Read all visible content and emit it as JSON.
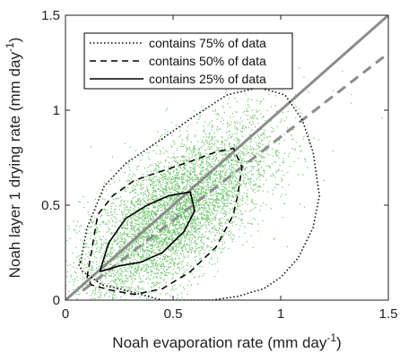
{
  "chart_data": {
    "type": "scatter",
    "xlabel": "Noah evaporation rate (mm day",
    "xlabel_sup": "-1",
    "xlabel_end": ")",
    "ylabel": "Noah layer 1 drying rate (mm day",
    "ylabel_sup": "-1",
    "ylabel_end": ")",
    "xlim": [
      0,
      1.5
    ],
    "ylim": [
      0,
      1.5
    ],
    "xticks": [
      0,
      0.5,
      1,
      1.5
    ],
    "yticks": [
      0,
      0.5,
      1,
      1.5
    ],
    "xtick_labels": [
      "0",
      "0.5",
      "1",
      "1.5"
    ],
    "ytick_labels": [
      "0",
      "0.5",
      "1",
      "1.5"
    ],
    "grid": false,
    "legend_position": "top-left",
    "colors": {
      "points": "#6cc46c",
      "contours": "#000000",
      "reference_lines": "#8c8c8c"
    },
    "scatter_cloud": {
      "center": [
        0.5,
        0.45
      ],
      "density": "dense"
    },
    "series": [
      {
        "name": "contains 75% of data",
        "style": "dotted",
        "x": [
          0.07,
          0.1,
          0.18,
          0.28,
          0.45,
          0.6,
          0.75,
          0.9,
          1.02,
          1.1,
          1.15,
          1.18,
          1.15,
          1.08,
          1.0,
          0.92,
          0.8,
          0.68,
          0.55,
          0.45,
          0.35,
          0.25,
          0.17,
          0.12,
          0.08,
          0.06,
          0.07
        ],
        "y": [
          0.2,
          0.38,
          0.6,
          0.72,
          0.85,
          0.97,
          1.08,
          1.12,
          1.08,
          0.95,
          0.78,
          0.55,
          0.38,
          0.22,
          0.12,
          0.06,
          0.02,
          0.0,
          0.0,
          0.0,
          0.03,
          0.06,
          0.08,
          0.12,
          0.15,
          0.19,
          0.2
        ]
      },
      {
        "name": "contains 50% of data",
        "style": "dashed",
        "x": [
          0.1,
          0.12,
          0.15,
          0.22,
          0.32,
          0.45,
          0.58,
          0.7,
          0.78,
          0.82,
          0.8,
          0.78,
          0.7,
          0.58,
          0.45,
          0.32,
          0.22,
          0.12,
          0.1
        ],
        "y": [
          0.12,
          0.25,
          0.45,
          0.55,
          0.63,
          0.68,
          0.73,
          0.78,
          0.8,
          0.7,
          0.55,
          0.45,
          0.28,
          0.15,
          0.06,
          0.03,
          0.05,
          0.08,
          0.12
        ]
      },
      {
        "name": "contains 25% of data",
        "style": "solid",
        "x": [
          0.16,
          0.2,
          0.28,
          0.38,
          0.48,
          0.58,
          0.6,
          0.55,
          0.45,
          0.35,
          0.25,
          0.16
        ],
        "y": [
          0.15,
          0.3,
          0.43,
          0.5,
          0.55,
          0.57,
          0.47,
          0.36,
          0.25,
          0.2,
          0.18,
          0.15
        ]
      },
      {
        "name": "",
        "style": "solid-gray-1to1",
        "x": [
          0,
          1.5
        ],
        "y": [
          0,
          1.5
        ]
      },
      {
        "name": "",
        "style": "dashed-gray-fit",
        "x": [
          0.08,
          1.5
        ],
        "y": [
          0.05,
          1.3
        ]
      }
    ]
  }
}
